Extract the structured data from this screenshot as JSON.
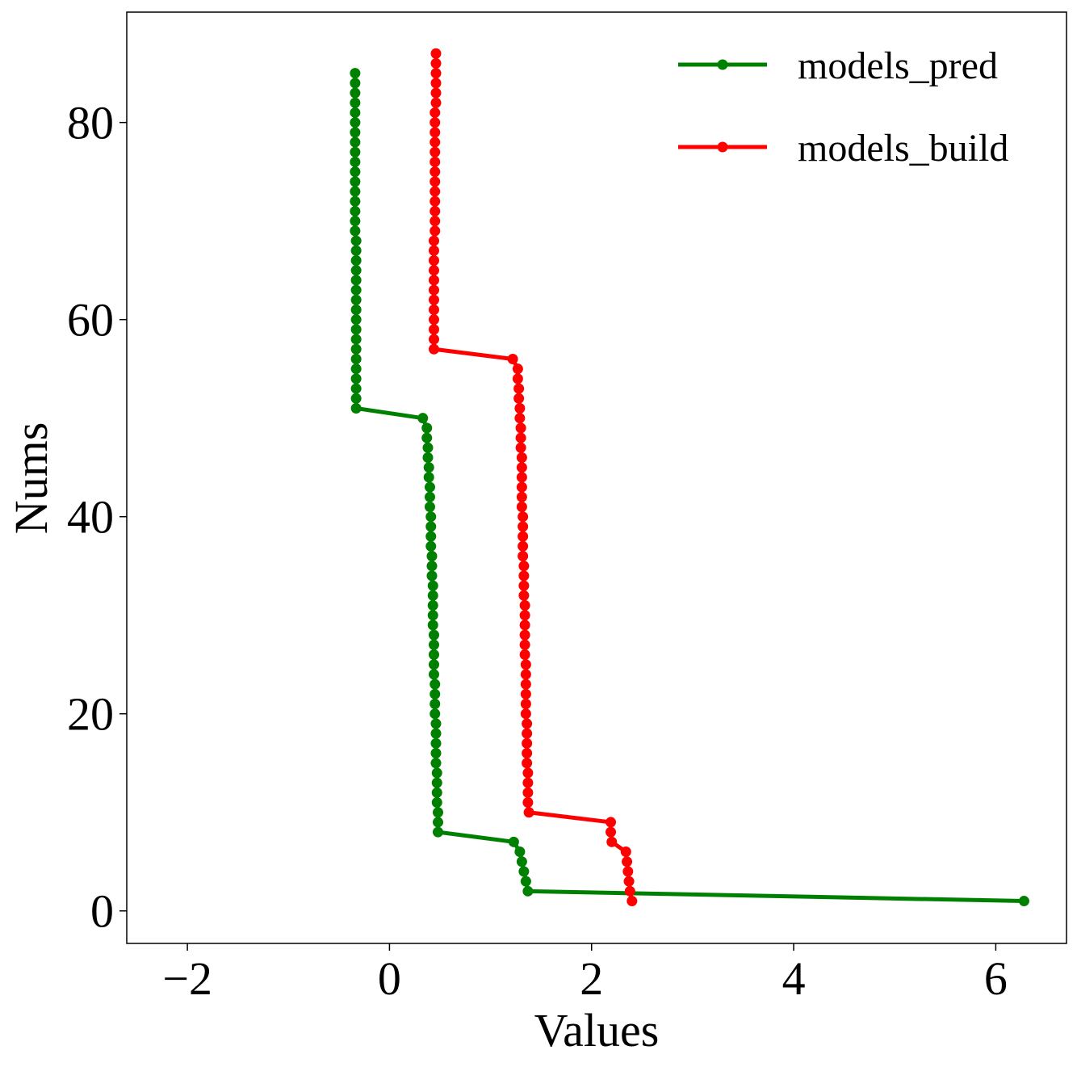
{
  "chart_data": {
    "type": "line",
    "title": "",
    "xlabel": "Values",
    "ylabel": "Nums",
    "xlim": [
      -2.6,
      6.7
    ],
    "ylim": [
      -3.3,
      91.2
    ],
    "xticks": [
      -2,
      0,
      2,
      4,
      6
    ],
    "yticks": [
      0,
      20,
      40,
      60,
      80
    ],
    "xtick_labels": [
      "−2",
      "0",
      "2",
      "4",
      "6"
    ],
    "ytick_labels": [
      "0",
      "20",
      "40",
      "60",
      "80"
    ],
    "grid": false,
    "legend_position": "top-right",
    "series": [
      {
        "name": "models_pred",
        "color": "#008000",
        "marker": "circle",
        "y": [
          1,
          2,
          3,
          4,
          5,
          6,
          7,
          8,
          9,
          10,
          11,
          12,
          13,
          14,
          15,
          16,
          17,
          18,
          19,
          20,
          21,
          22,
          23,
          24,
          25,
          26,
          27,
          28,
          29,
          30,
          31,
          32,
          33,
          34,
          35,
          36,
          37,
          38,
          39,
          40,
          41,
          42,
          43,
          44,
          45,
          46,
          47,
          48,
          49,
          50,
          51,
          52,
          53,
          54,
          55,
          56,
          57,
          58,
          59,
          60,
          61,
          62,
          63,
          64,
          65,
          66,
          67,
          68,
          69,
          70,
          71,
          72,
          73,
          74,
          75,
          76,
          77,
          78,
          79,
          80,
          81,
          82,
          83,
          84,
          85
        ],
        "x": [
          6.28,
          1.37,
          1.35,
          1.33,
          1.31,
          1.29,
          1.23,
          0.48,
          0.48,
          0.48,
          0.47,
          0.47,
          0.47,
          0.47,
          0.46,
          0.46,
          0.46,
          0.46,
          0.46,
          0.45,
          0.45,
          0.45,
          0.45,
          0.44,
          0.44,
          0.44,
          0.44,
          0.44,
          0.43,
          0.43,
          0.43,
          0.43,
          0.43,
          0.42,
          0.42,
          0.42,
          0.41,
          0.41,
          0.41,
          0.41,
          0.4,
          0.4,
          0.4,
          0.39,
          0.39,
          0.38,
          0.38,
          0.37,
          0.37,
          0.33,
          -0.33,
          -0.33,
          -0.33,
          -0.33,
          -0.33,
          -0.33,
          -0.33,
          -0.33,
          -0.33,
          -0.33,
          -0.33,
          -0.33,
          -0.33,
          -0.33,
          -0.33,
          -0.33,
          -0.33,
          -0.33,
          -0.34,
          -0.34,
          -0.34,
          -0.34,
          -0.34,
          -0.34,
          -0.34,
          -0.34,
          -0.34,
          -0.34,
          -0.34,
          -0.34,
          -0.34,
          -0.34,
          -0.34,
          -0.34,
          -0.34
        ]
      },
      {
        "name": "models_build",
        "color": "#ff0000",
        "marker": "circle",
        "y": [
          1,
          2,
          3,
          4,
          5,
          6,
          7,
          8,
          9,
          10,
          11,
          12,
          13,
          14,
          15,
          16,
          17,
          18,
          19,
          20,
          21,
          22,
          23,
          24,
          25,
          26,
          27,
          28,
          29,
          30,
          31,
          32,
          33,
          34,
          35,
          36,
          37,
          38,
          39,
          40,
          41,
          42,
          43,
          44,
          45,
          46,
          47,
          48,
          49,
          50,
          51,
          52,
          53,
          54,
          55,
          56,
          57,
          58,
          59,
          60,
          61,
          62,
          63,
          64,
          65,
          66,
          67,
          68,
          69,
          70,
          71,
          72,
          73,
          74,
          75,
          76,
          77,
          78,
          79,
          80,
          81,
          82,
          83,
          84,
          85,
          86,
          87
        ],
        "x": [
          2.4,
          2.38,
          2.37,
          2.36,
          2.35,
          2.34,
          2.2,
          2.19,
          2.19,
          1.38,
          1.37,
          1.37,
          1.37,
          1.37,
          1.36,
          1.36,
          1.36,
          1.36,
          1.36,
          1.35,
          1.35,
          1.35,
          1.35,
          1.35,
          1.35,
          1.34,
          1.34,
          1.34,
          1.34,
          1.34,
          1.34,
          1.33,
          1.33,
          1.33,
          1.33,
          1.32,
          1.32,
          1.32,
          1.32,
          1.32,
          1.31,
          1.31,
          1.31,
          1.31,
          1.31,
          1.31,
          1.3,
          1.3,
          1.3,
          1.29,
          1.29,
          1.28,
          1.28,
          1.27,
          1.27,
          1.22,
          0.44,
          0.44,
          0.44,
          0.44,
          0.44,
          0.44,
          0.44,
          0.44,
          0.44,
          0.44,
          0.44,
          0.44,
          0.45,
          0.45,
          0.45,
          0.45,
          0.45,
          0.45,
          0.45,
          0.45,
          0.45,
          0.45,
          0.45,
          0.45,
          0.45,
          0.46,
          0.46,
          0.46,
          0.46,
          0.46,
          0.46
        ]
      }
    ]
  }
}
